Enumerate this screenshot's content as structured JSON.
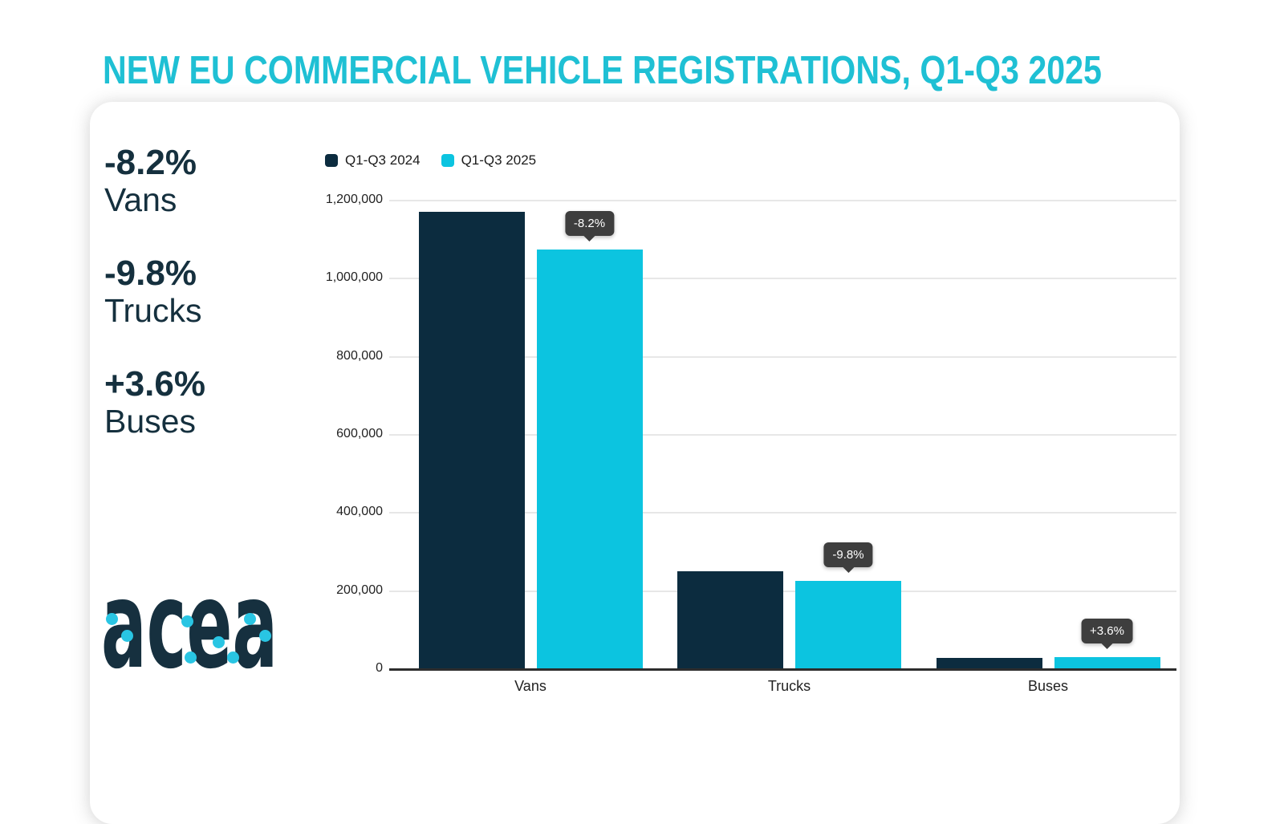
{
  "page": {
    "title": "NEW EU COMMERCIAL VEHICLE REGISTRATIONS, Q1-Q3 2025"
  },
  "stats": [
    {
      "value": "-8.2%",
      "label": "Vans"
    },
    {
      "value": "-9.8%",
      "label": "Trucks"
    },
    {
      "value": "+3.6%",
      "label": "Buses"
    }
  ],
  "logo": {
    "text": "acea"
  },
  "colors": {
    "title_cyan": "#1fc0d4",
    "navy": "#0c2c3f",
    "cyan": "#0cc4e0",
    "stat_text": "#15303e",
    "tooltip_bg": "#3e3e3e",
    "gridline": "#e7e7e7",
    "axis": "#2d2d2d"
  },
  "chart_data": {
    "type": "bar",
    "title": "NEW EU COMMERCIAL VEHICLE REGISTRATIONS, Q1-Q3 2025",
    "categories": [
      "Vans",
      "Trucks",
      "Buses"
    ],
    "series": [
      {
        "name": "Q1-Q3 2024",
        "color": "#0c2c3f",
        "values": [
          1169000,
          248000,
          27500
        ]
      },
      {
        "name": "Q1-Q3 2025",
        "color": "#0cc4e0",
        "values": [
          1073000,
          224000,
          28500
        ]
      }
    ],
    "annotations": [
      {
        "category": "Vans",
        "series": "Q1-Q3 2025",
        "label": "-8.2%"
      },
      {
        "category": "Trucks",
        "series": "Q1-Q3 2025",
        "label": "-9.8%"
      },
      {
        "category": "Buses",
        "series": "Q1-Q3 2025",
        "label": "+3.6%"
      }
    ],
    "xlabel": "",
    "ylabel": "",
    "ylim": [
      0,
      1200000
    ],
    "ytick_interval": 200000,
    "ytick_labels": [
      "0",
      "200,000",
      "400,000",
      "600,000",
      "800,000",
      "1,000,000",
      "1,200,000"
    ],
    "grid": true,
    "legend_position": "top-left"
  }
}
